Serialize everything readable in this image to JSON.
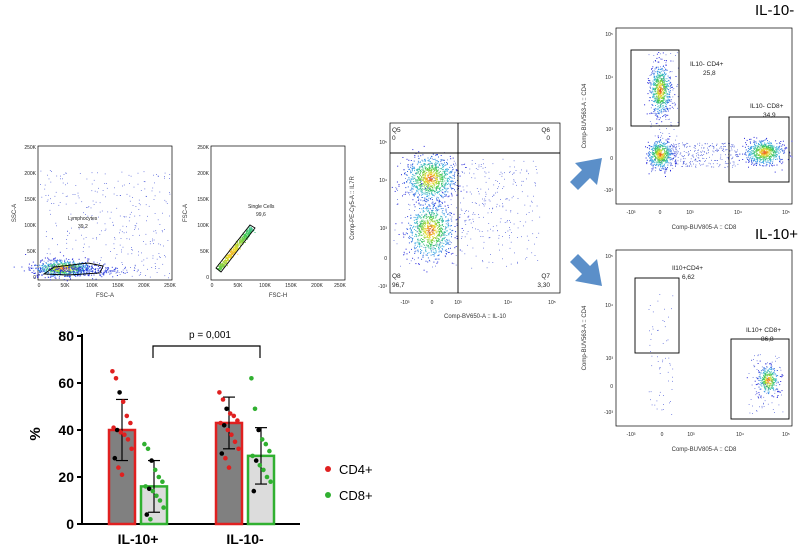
{
  "headers": {
    "top_right": "IL-10-",
    "bottom_right": "IL-10+"
  },
  "gate1": {
    "yticks": [
      "250K",
      "200K",
      "150K",
      "100K",
      "50K",
      "0"
    ],
    "xticks": [
      "0",
      "50K",
      "100K",
      "150K",
      "200K",
      "250K"
    ],
    "xlabel": "FSC-A",
    "ylabel": "SSC-A",
    "gate_name": "Lymphocytes",
    "gate_value": "39,2"
  },
  "gate2": {
    "yticks": [
      "250K",
      "200K",
      "150K",
      "100K",
      "50K",
      "0"
    ],
    "xticks": [
      "0",
      "50K",
      "100K",
      "150K",
      "200K",
      "250K"
    ],
    "xlabel": "FSC-H",
    "ylabel": "FSC-A",
    "gate_name": "Single Cells",
    "gate_value": "99,6"
  },
  "quad": {
    "xlabel": "Comp-BV650-A :: IL-10",
    "ylabel": "Comp-PE-Cy5-A :: IL7R",
    "q5": "Q5",
    "q5_val": "0",
    "q6": "Q6",
    "q6_val": "0",
    "q8": "Q8",
    "q8_val": "96,7",
    "q7": "Q7",
    "q7_val": "3,30",
    "yticks": [
      "10⁵",
      "10⁴",
      "10³",
      "0",
      "-10³"
    ],
    "xticks": [
      "-10³",
      "0",
      "10³",
      "10⁴",
      "10⁵"
    ]
  },
  "il10neg": {
    "xlabel": "Comp-BUV805-A :: CD8",
    "ylabel": "Comp-BUV563-A :: CD4",
    "g1_name": "IL10- CD4+",
    "g1_val": "25,8",
    "g2_name": "IL10- CD8+",
    "g2_val": "34,9",
    "yticks": [
      "10⁵",
      "10⁴",
      "10³",
      "0",
      "-10³"
    ],
    "xticks": [
      "-10³",
      "0",
      "10³",
      "10⁴",
      "10⁵"
    ]
  },
  "il10pos": {
    "xlabel": "Comp-BUV805-A :: CD8",
    "ylabel": "Comp-BUV563-A :: CD4",
    "g1_name": "Il10+CD4+",
    "g1_val": "6,62",
    "g2_name": "IL10+ CD8+",
    "g2_val": "86,8",
    "yticks": [
      "10⁵",
      "10⁴",
      "10³",
      "0",
      "-10³"
    ],
    "xticks": [
      "-10³",
      "0",
      "10³",
      "10⁴",
      "10⁵"
    ]
  },
  "chart_data": {
    "type": "bar",
    "title": "",
    "ylabel": "%",
    "xlabel": "",
    "ylim": [
      0,
      80
    ],
    "yticks": [
      0,
      20,
      40,
      60,
      80
    ],
    "categories": [
      "IL-10+",
      "IL-10-"
    ],
    "series": [
      {
        "name": "CD4+",
        "values": [
          40,
          43
        ],
        "sd": [
          13,
          11
        ],
        "fill": "#808080",
        "stroke": "#e02020",
        "dot": "#e02020",
        "points": [
          [
            65,
            62,
            56,
            52,
            46,
            43,
            41,
            40,
            39,
            38,
            36,
            32,
            28,
            24,
            21
          ],
          [
            56,
            53,
            49,
            47,
            46,
            44,
            43,
            42,
            40,
            38,
            35,
            32,
            30,
            28,
            24
          ]
        ]
      },
      {
        "name": "CD8+",
        "values": [
          16,
          29
        ],
        "sd": [
          11,
          12
        ],
        "fill": "#dcdcdc",
        "stroke": "#30b030",
        "dot": "#30b030",
        "points": [
          [
            34,
            32,
            27,
            23,
            20,
            18,
            16,
            15,
            14,
            12,
            10,
            7,
            4,
            2
          ],
          [
            62,
            49,
            40,
            36,
            34,
            31,
            29,
            27,
            25,
            23,
            20,
            18,
            14
          ]
        ]
      }
    ],
    "significance": "p = 0,001",
    "legend": [
      "CD4+",
      "CD8+"
    ],
    "legend_position": "right"
  }
}
